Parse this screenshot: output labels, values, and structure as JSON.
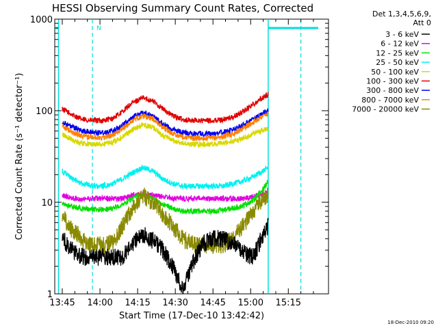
{
  "chart_data": {
    "type": "line",
    "title": "HESSI Observing Summary Count Rates, Corrected",
    "xlabel": "Start Time (17-Dec-10 13:42:42)",
    "ylabel": "Corrected Count Rate (s⁻¹ detector⁻¹)",
    "yscale": "log",
    "xlim_min": [
      -3,
      106
    ],
    "ylim": [
      1,
      1000
    ],
    "x_ticks": [
      {
        "min": 0,
        "label": "13:45"
      },
      {
        "min": 15,
        "label": "14:00"
      },
      {
        "min": 30,
        "label": "14:15"
      },
      {
        "min": 45,
        "label": "14:30"
      },
      {
        "min": 60,
        "label": "14:45"
      },
      {
        "min": 75,
        "label": "15:00"
      },
      {
        "min": 90,
        "label": "15:15"
      }
    ],
    "y_ticks": [
      {
        "value": 1,
        "label": "1"
      },
      {
        "value": 10,
        "label": "10"
      },
      {
        "value": 100,
        "label": "100"
      },
      {
        "value": 1000,
        "label": "1000"
      }
    ],
    "legend": {
      "header": [
        "Det 1,3,4,5,6,9,",
        "Att 0"
      ],
      "placement": "right",
      "entries": [
        {
          "label": "3 - 6 keV",
          "color": "#000000"
        },
        {
          "label": "6 - 12 keV",
          "color": "#e000e0"
        },
        {
          "label": "12 - 25 keV",
          "color": "#00e000"
        },
        {
          "label": "25 - 50 keV",
          "color": "#00f0f0"
        },
        {
          "label": "50 - 100 keV",
          "color": "#d8d800"
        },
        {
          "label": "100 - 300 keV",
          "color": "#e00000"
        },
        {
          "label": "300 - 800 keV",
          "color": "#0000ee"
        },
        {
          "label": "800 - 7000 keV",
          "color": "#ff8000"
        },
        {
          "label": "7000 - 20000 keV",
          "color": "#8a8a00"
        }
      ]
    },
    "series": [
      {
        "name": "100 - 300 keV",
        "color": "#e00000",
        "x": [
          0,
          4,
          8,
          12,
          16,
          20,
          24,
          28,
          32,
          36,
          40,
          44,
          48,
          52,
          56,
          60,
          64,
          68,
          72,
          76,
          80,
          82
        ],
        "y": [
          105,
          90,
          80,
          78,
          78,
          82,
          98,
          122,
          138,
          128,
          105,
          88,
          80,
          78,
          78,
          78,
          80,
          85,
          98,
          118,
          140,
          150
        ]
      },
      {
        "name": "300 - 800 keV",
        "color": "#0000ee",
        "x": [
          0,
          4,
          8,
          12,
          16,
          20,
          24,
          28,
          32,
          36,
          40,
          44,
          48,
          52,
          56,
          60,
          64,
          68,
          72,
          76,
          80,
          82
        ],
        "y": [
          75,
          66,
          60,
          58,
          58,
          60,
          70,
          85,
          95,
          88,
          72,
          62,
          58,
          56,
          56,
          56,
          58,
          62,
          70,
          80,
          95,
          100
        ]
      },
      {
        "name": "800 - 7000 keV",
        "color": "#ff8000",
        "x": [
          0,
          4,
          8,
          12,
          16,
          20,
          24,
          28,
          32,
          36,
          40,
          44,
          48,
          52,
          56,
          60,
          64,
          68,
          72,
          76,
          80,
          82
        ],
        "y": [
          68,
          58,
          53,
          51,
          51,
          54,
          63,
          78,
          88,
          82,
          66,
          56,
          52,
          50,
          50,
          50,
          52,
          56,
          64,
          75,
          88,
          92
        ]
      },
      {
        "name": "50 - 100 keV",
        "color": "#d8d800",
        "x": [
          0,
          4,
          8,
          12,
          16,
          20,
          24,
          28,
          32,
          36,
          40,
          44,
          48,
          52,
          56,
          60,
          64,
          68,
          72,
          76,
          80,
          82
        ],
        "y": [
          55,
          48,
          44,
          43,
          43,
          45,
          52,
          62,
          70,
          66,
          54,
          47,
          44,
          43,
          43,
          43,
          44,
          46,
          50,
          56,
          62,
          64
        ]
      },
      {
        "name": "25 - 50 keV",
        "color": "#00f0f0",
        "x": [
          0,
          4,
          8,
          12,
          16,
          20,
          24,
          28,
          32,
          36,
          40,
          44,
          48,
          52,
          56,
          60,
          64,
          68,
          72,
          76,
          80,
          82
        ],
        "y": [
          22,
          18,
          16,
          15,
          15,
          16,
          18,
          21,
          24,
          22,
          18,
          16,
          15,
          15,
          15,
          15,
          15,
          16,
          17,
          19,
          22,
          24
        ]
      },
      {
        "name": "6 - 12 keV",
        "color": "#e000e0",
        "x": [
          0,
          4,
          8,
          12,
          16,
          20,
          24,
          28,
          32,
          36,
          40,
          44,
          48,
          52,
          56,
          60,
          64,
          68,
          72,
          76,
          80,
          82
        ],
        "y": [
          12,
          11,
          11,
          11,
          11,
          11,
          11,
          12,
          12.5,
          12,
          11.5,
          11,
          11,
          11,
          11,
          11,
          11,
          11,
          11,
          11.5,
          12,
          13
        ]
      },
      {
        "name": "12 - 25 keV",
        "color": "#00e000",
        "x": [
          0,
          4,
          8,
          12,
          16,
          20,
          24,
          28,
          32,
          36,
          40,
          44,
          48,
          52,
          56,
          60,
          64,
          68,
          72,
          76,
          80,
          82
        ],
        "y": [
          9.5,
          9,
          8.5,
          8.3,
          8.3,
          8.5,
          9.5,
          11,
          12,
          11,
          9.5,
          8.5,
          8,
          8,
          8,
          8,
          8.2,
          8.6,
          9.2,
          10.5,
          14,
          17
        ]
      },
      {
        "name": "7000 - 20000 keV",
        "color": "#8a8a00",
        "x": [
          0,
          3,
          6,
          9,
          12,
          16,
          20,
          24,
          28,
          32,
          36,
          40,
          44,
          48,
          52,
          56,
          60,
          64,
          68,
          72,
          76,
          80,
          82
        ],
        "y": [
          7.5,
          5.2,
          4.5,
          3.6,
          3.4,
          3.4,
          3.6,
          5.5,
          8.5,
          12,
          10,
          7.5,
          5.5,
          4,
          3.5,
          3.4,
          3.4,
          3.4,
          4,
          5.5,
          8,
          11,
          12
        ]
      },
      {
        "name": "3 - 6 keV",
        "color": "#000000",
        "x": [
          0,
          3,
          6,
          9,
          12,
          16,
          20,
          24,
          28,
          32,
          36,
          40,
          44,
          48,
          52,
          56,
          60,
          64,
          68,
          72,
          76,
          80,
          82
        ],
        "y": [
          4,
          3.2,
          2.7,
          2.5,
          2.5,
          2.5,
          2.5,
          2.5,
          3.5,
          4.5,
          3.8,
          3,
          2,
          1.1,
          2.2,
          3.5,
          4,
          4,
          3.5,
          2.8,
          2.5,
          4.5,
          5.5
        ]
      }
    ],
    "annotations": [
      {
        "text": "N",
        "x_min": 12
      }
    ],
    "markers": {
      "color": "#00dede",
      "solid_vertical_min": [
        -1.5,
        82
      ],
      "dashed_vertical_min": [
        12,
        95
      ]
    }
  },
  "footer": {
    "timestamp": "18-Dec-2010 09:20"
  }
}
